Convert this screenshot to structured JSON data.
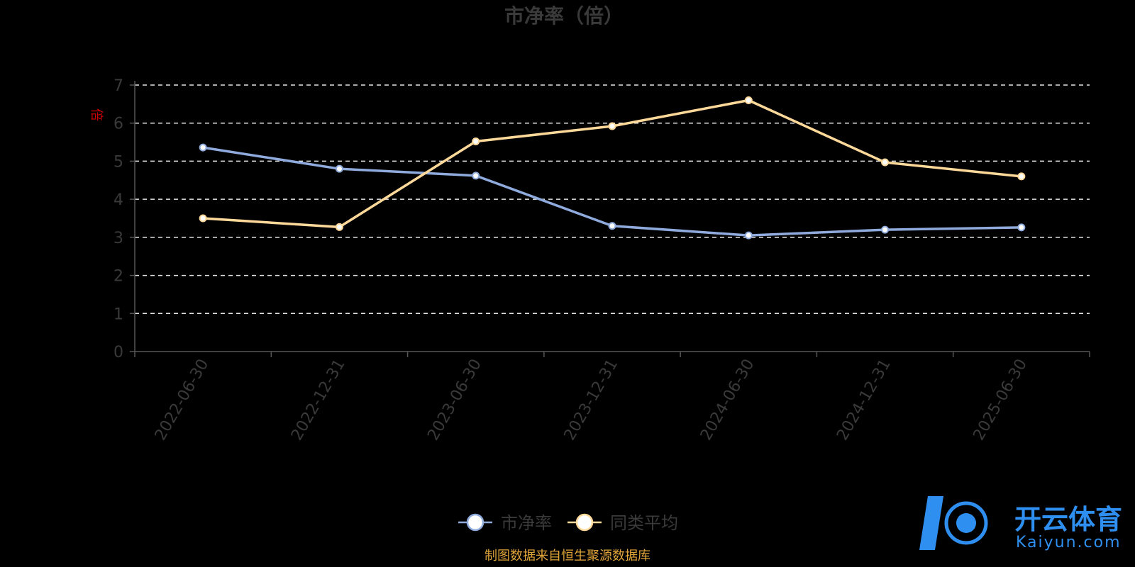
{
  "chart_data": {
    "type": "line",
    "title": "市净率（倍）",
    "ylabel": "倍",
    "categories": [
      "2022-06-30",
      "2022-12-31",
      "2023-06-30",
      "2023-12-31",
      "2024-06-30",
      "2024-12-31",
      "2025-06-30"
    ],
    "ylim": [
      0,
      7
    ],
    "yticks": [
      "0",
      "1",
      "2",
      "3",
      "4",
      "5",
      "6",
      "7"
    ],
    "grid": true,
    "legend_position": "bottom",
    "series": [
      {
        "name": "市净率",
        "color": "#8faadc",
        "values": [
          5.36,
          4.8,
          4.62,
          3.3,
          3.05,
          3.2,
          3.26
        ]
      },
      {
        "name": "同类平均",
        "color": "#ffd99a",
        "values": [
          3.5,
          3.27,
          5.52,
          5.92,
          6.6,
          4.97,
          4.6
        ]
      }
    ]
  },
  "source_note": "制图数据来自恒生聚源数据库",
  "watermark": {
    "brand": "开云体育",
    "domain": "Kaiyun.com"
  }
}
